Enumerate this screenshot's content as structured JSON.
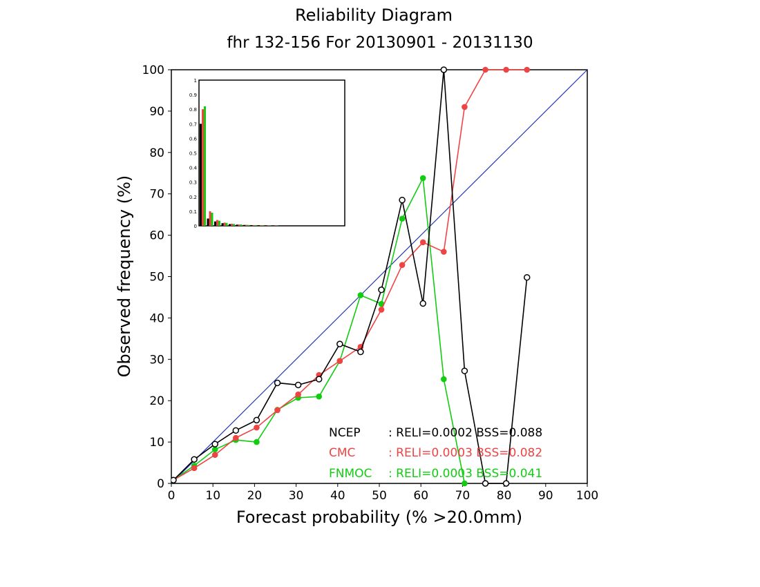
{
  "chart_data": {
    "type": "line",
    "title": "Reliability Diagram",
    "subtitle": "fhr 132-156 For 20130901 - 20131130",
    "xlabel": "Forecast probability (% >20.0mm)",
    "ylabel": "Observed frequency (%)",
    "xlim": [
      0,
      100
    ],
    "ylim": [
      0,
      100
    ],
    "xticks": [
      "0",
      "10",
      "20",
      "30",
      "40",
      "50",
      "60",
      "70",
      "80",
      "90",
      "100"
    ],
    "yticks": [
      "0",
      "10",
      "20",
      "30",
      "40",
      "50",
      "60",
      "70",
      "80",
      "90",
      "100"
    ],
    "grid": false,
    "legend_position": "bottom-right",
    "diagonal_color": "#2233bb",
    "series": [
      {
        "name": "NCEP",
        "color": "#000000",
        "marker": "open-circle",
        "stats": ": RELI=0.0002  BSS=0.088",
        "x": [
          0.5,
          5.5,
          10.5,
          15.5,
          20.5,
          25.5,
          30.5,
          35.5,
          40.5,
          45.5,
          50.5,
          55.5,
          60.5,
          65.5,
          70.5,
          75.5,
          80.5,
          85.5
        ],
        "y": [
          0.8,
          5.8,
          9.5,
          12.8,
          15.3,
          24.3,
          23.8,
          25.2,
          33.7,
          31.8,
          46.8,
          68.5,
          43.5,
          100,
          27.2,
          0,
          0,
          49.8
        ]
      },
      {
        "name": "CMC",
        "color": "#ee4444",
        "marker": "filled-circle",
        "stats": ": RELI=0.0003  BSS=0.082",
        "x": [
          0.5,
          5.5,
          10.5,
          15.5,
          20.5,
          25.5,
          30.5,
          35.5,
          40.5,
          45.5,
          50.5,
          55.5,
          60.5,
          65.5,
          70.5,
          75.5,
          80.5,
          85.5
        ],
        "y": [
          0.8,
          3.7,
          6.9,
          11.0,
          13.5,
          17.7,
          21.5,
          26.2,
          29.6,
          33.0,
          42.0,
          52.8,
          58.3,
          56.0,
          91.0,
          100,
          100,
          100
        ]
      },
      {
        "name": "FNMOC",
        "color": "#11cc11",
        "marker": "filled-circle",
        "stats": ": RELI=0.0003  BSS=0.041",
        "x": [
          0.5,
          5.5,
          10.5,
          15.5,
          20.5,
          25.5,
          30.5,
          35.5,
          40.5,
          45.5,
          50.5,
          55.5,
          60.5,
          65.5,
          70.5
        ],
        "y": [
          0.8,
          4.3,
          8.2,
          10.5,
          10.0,
          17.8,
          20.7,
          21.0,
          29.6,
          45.5,
          43.4,
          64.0,
          73.8,
          25.2,
          0
        ]
      }
    ],
    "inset": {
      "type": "bar",
      "yticks": [
        "0",
        "0.1",
        "0.2",
        "0.3",
        "0.4",
        "0.5",
        "0.6",
        "0.7",
        "0.8",
        "0.9",
        "1"
      ],
      "ylim": [
        0,
        1
      ],
      "series": [
        {
          "name": "NCEP",
          "color": "#000000",
          "values": [
            0.7,
            0.05,
            0.03,
            0.018,
            0.012,
            0.008,
            0.006,
            0.005,
            0.004,
            0.003,
            0.002
          ]
        },
        {
          "name": "CMC",
          "color": "#ee4444",
          "values": [
            0.8,
            0.1,
            0.04,
            0.022,
            0.014,
            0.009,
            0.007,
            0.005,
            0.004,
            0.003,
            0.002
          ]
        },
        {
          "name": "FNMOC",
          "color": "#11cc11",
          "values": [
            0.82,
            0.09,
            0.035,
            0.02,
            0.013,
            0.009,
            0.006,
            0.005,
            0.004,
            0.003,
            0.002
          ]
        }
      ]
    }
  }
}
